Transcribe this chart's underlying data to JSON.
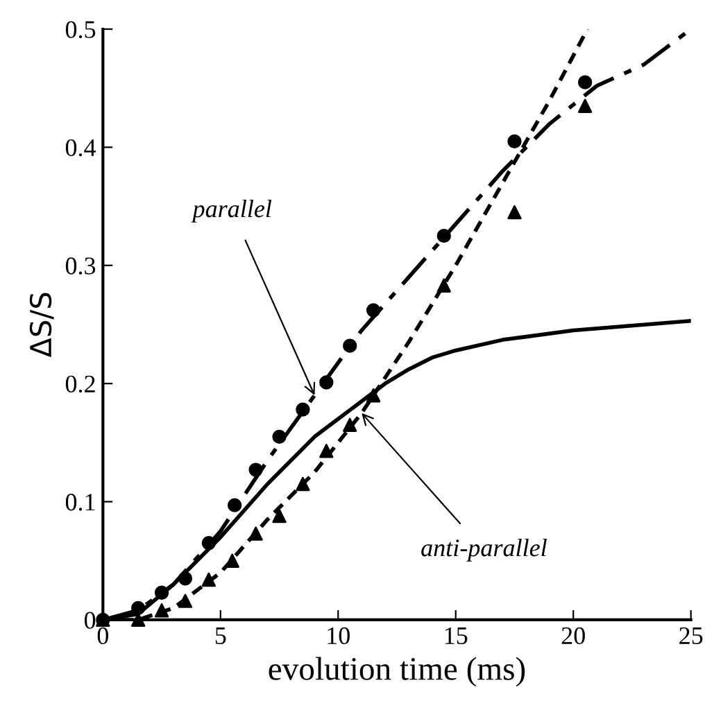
{
  "chart_data": {
    "type": "line",
    "xlabel": "evolution time (ms)",
    "ylabel": "ΔS/S",
    "xlim": [
      0,
      25
    ],
    "ylim": [
      0,
      0.5
    ],
    "xticks": [
      0,
      5,
      10,
      15,
      20,
      25
    ],
    "yticks": [
      0,
      0.1,
      0.2,
      0.3,
      0.4,
      0.5
    ],
    "grid": false,
    "legend": false,
    "series": [
      {
        "type": "scatter",
        "marker": "circle",
        "color": "#000000",
        "x": [
          0,
          1.5,
          2.5,
          3.5,
          4.5,
          5.6,
          6.5,
          7.5,
          8.5,
          9.5,
          10.5,
          11.5,
          14.5,
          17.5,
          20.5
        ],
        "values": [
          0,
          0.01,
          0.023,
          0.035,
          0.065,
          0.097,
          0.127,
          0.155,
          0.178,
          0.201,
          0.232,
          0.262,
          0.325,
          0.405,
          0.455
        ]
      },
      {
        "type": "scatter",
        "marker": "triangle",
        "color": "#000000",
        "x": [
          0,
          1.5,
          2.5,
          3.5,
          4.5,
          5.5,
          6.5,
          7.5,
          8.5,
          9.5,
          10.5,
          11.5,
          14.5,
          17.5,
          20.5
        ],
        "values": [
          0,
          0,
          0.008,
          0.016,
          0.034,
          0.05,
          0.073,
          0.088,
          0.115,
          0.143,
          0.165,
          0.19,
          0.283,
          0.345,
          0.435
        ]
      },
      {
        "line_style": "dashed",
        "color": "#000000",
        "x": [
          0,
          1.5,
          3,
          5,
          7,
          9,
          11,
          13,
          15,
          17,
          19,
          21,
          23,
          25
        ],
        "values": [
          0,
          0.008,
          0.03,
          0.075,
          0.135,
          0.19,
          0.245,
          0.29,
          0.335,
          0.38,
          0.42,
          0.452,
          0.47,
          0.5
        ]
      },
      {
        "line_style": "dotted",
        "color": "#000000",
        "x": [
          0,
          1.5,
          3,
          5,
          7,
          9,
          11,
          13,
          15,
          17,
          19,
          20.6
        ],
        "values": [
          0,
          0,
          0.01,
          0.04,
          0.085,
          0.125,
          0.175,
          0.235,
          0.3,
          0.37,
          0.44,
          0.5
        ]
      },
      {
        "line_style": "solid",
        "color": "#000000",
        "x": [
          0,
          1.5,
          3,
          5,
          7,
          9,
          10,
          11,
          12,
          13,
          14,
          15,
          17,
          20,
          25
        ],
        "values": [
          0,
          0.005,
          0.03,
          0.07,
          0.115,
          0.155,
          0.17,
          0.185,
          0.2,
          0.212,
          0.222,
          0.228,
          0.237,
          0.245,
          0.253
        ]
      }
    ],
    "annotations": [
      {
        "text": "parallel",
        "x": 9,
        "y": 0.19
      },
      {
        "text": "anti-parallel",
        "x": 11,
        "y": 0.175
      }
    ]
  }
}
